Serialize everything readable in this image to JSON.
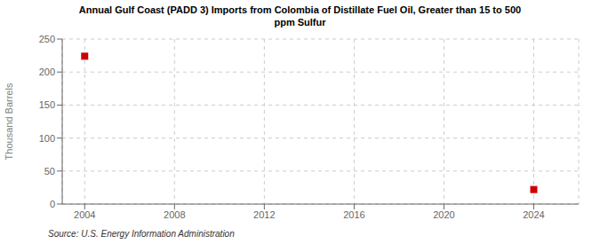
{
  "chart_data": {
    "type": "scatter",
    "title": "Annual Gulf Coast (PADD 3) Imports from Colombia of Distillate Fuel Oil, Greater than 15 to 500\nppm Sulfur",
    "ylabel": "Thousand Barrels",
    "annotations": [
      "Source: U.S. Energy Information Administration"
    ],
    "x": [
      2004,
      2024
    ],
    "values": [
      224,
      22
    ],
    "color": "#cc0000",
    "marker": "square",
    "xlim": [
      2003,
      2026
    ],
    "xticks": [
      2004,
      2008,
      2012,
      2016,
      2020,
      2024
    ],
    "ylim": [
      0,
      250
    ],
    "yticks": [
      0,
      50,
      100,
      150,
      200,
      250
    ],
    "grid": true
  }
}
